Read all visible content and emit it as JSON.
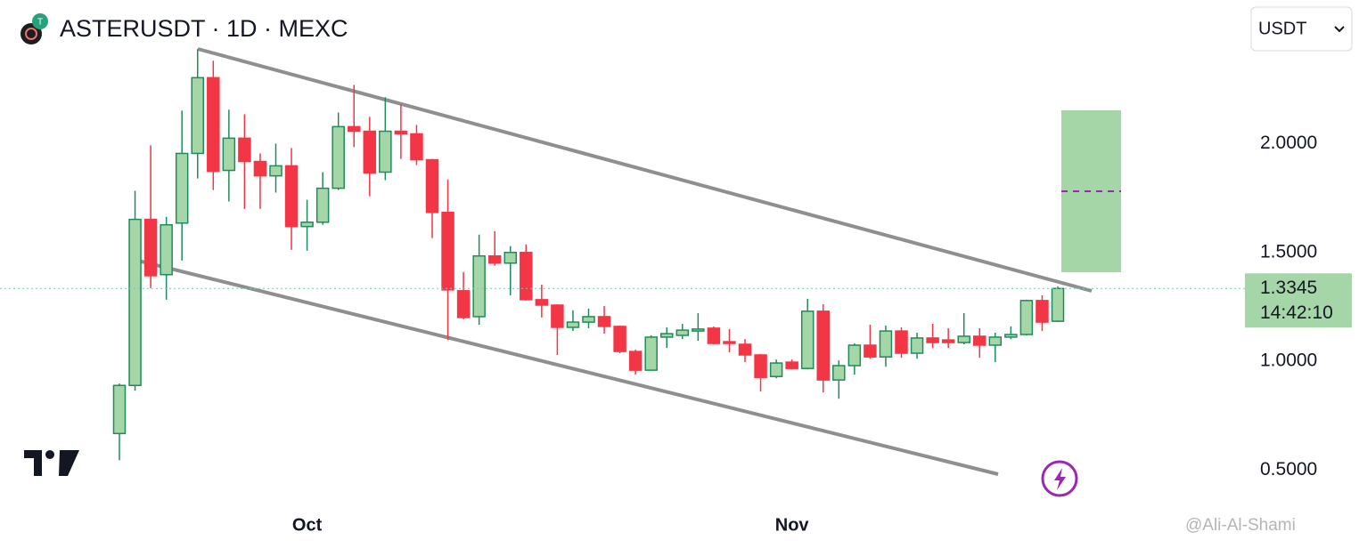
{
  "chart_data": {
    "type": "candlestick",
    "title": "ASTERUSDT · 1D · MEXC",
    "currency": "USDT",
    "categories": [
      null,
      null,
      null,
      null,
      null,
      null,
      null,
      null,
      null,
      null,
      null,
      null,
      "Oct",
      null,
      null,
      null,
      null,
      null,
      null,
      null,
      null,
      null,
      null,
      null,
      null,
      null,
      null,
      null,
      null,
      null,
      null,
      null,
      null,
      null,
      null,
      null,
      null,
      null,
      null,
      null,
      null,
      null,
      null,
      "Nov",
      null,
      null,
      null,
      null,
      null,
      null,
      null,
      null,
      null,
      null,
      null,
      null,
      null,
      null,
      null,
      null,
      null
    ],
    "open": [
      0.668,
      0.889,
      1.652,
      1.398,
      1.635,
      1.955,
      2.303,
      1.877,
      2.025,
      1.918,
      1.852,
      1.898,
      1.619,
      1.639,
      1.795,
      2.078,
      2.057,
      1.869,
      2.057,
      2.045,
      1.926,
      1.684,
      1.324,
      1.205,
      1.484,
      1.451,
      1.5,
      1.283,
      1.258,
      1.156,
      1.18,
      1.205,
      1.16,
      1.045,
      0.959,
      1.111,
      1.119,
      1.139,
      1.152,
      1.09,
      1.078,
      1.029,
      0.93,
      0.996,
      0.967,
      1.23,
      0.914,
      0.98,
      1.074,
      1.02,
      1.139,
      1.037,
      1.107,
      1.098,
      1.086,
      1.115,
      1.074,
      1.111,
      1.123,
      1.279,
      1.184
    ],
    "high": [
      0.898,
      1.783,
      1.992,
      1.664,
      2.152,
      2.434,
      2.381,
      2.156,
      2.135,
      1.955,
      2.0,
      1.98,
      1.742,
      1.869,
      2.143,
      2.27,
      2.123,
      2.213,
      2.18,
      2.086,
      1.93,
      1.836,
      1.41,
      1.582,
      1.598,
      1.529,
      1.537,
      1.352,
      1.262,
      1.234,
      1.242,
      1.254,
      1.164,
      1.053,
      1.119,
      1.156,
      1.172,
      1.221,
      1.16,
      1.148,
      1.102,
      1.033,
      1.008,
      1.008,
      1.287,
      1.262,
      1.004,
      1.082,
      1.168,
      1.164,
      1.156,
      1.131,
      1.172,
      1.152,
      1.221,
      1.152,
      1.131,
      1.16,
      1.283,
      1.303,
      1.344
    ],
    "low": [
      0.545,
      0.865,
      1.336,
      1.283,
      1.463,
      1.84,
      1.787,
      1.734,
      1.7,
      1.7,
      1.775,
      1.512,
      1.508,
      1.627,
      1.787,
      1.984,
      1.758,
      1.832,
      1.93,
      1.902,
      1.566,
      1.098,
      1.193,
      1.168,
      1.439,
      1.303,
      1.279,
      1.201,
      1.029,
      1.139,
      1.152,
      1.127,
      1.037,
      0.939,
      0.959,
      1.061,
      1.102,
      1.094,
      1.078,
      1.041,
      0.996,
      0.861,
      0.922,
      0.963,
      0.963,
      0.857,
      0.828,
      0.939,
      1.012,
      0.975,
      1.016,
      1.012,
      1.061,
      1.061,
      1.078,
      1.016,
      0.996,
      1.102,
      1.119,
      1.139,
      1.18
    ],
    "close": [
      0.889,
      1.652,
      1.393,
      1.627,
      1.955,
      2.303,
      1.873,
      2.025,
      1.918,
      1.852,
      1.898,
      1.619,
      1.639,
      1.795,
      2.078,
      2.057,
      1.865,
      2.057,
      2.045,
      1.926,
      1.684,
      1.328,
      1.201,
      1.484,
      1.451,
      1.5,
      1.283,
      1.258,
      1.156,
      1.18,
      1.205,
      1.16,
      1.045,
      0.959,
      1.111,
      1.127,
      1.143,
      1.148,
      1.082,
      1.082,
      1.029,
      0.926,
      0.992,
      0.967,
      1.23,
      0.914,
      0.98,
      1.074,
      1.02,
      1.139,
      1.037,
      1.107,
      1.086,
      1.086,
      1.115,
      1.074,
      1.111,
      1.123,
      1.279,
      1.18,
      1.3345
    ],
    "up_color": "#a5d6a7",
    "up_border": "#1e8c5a",
    "down_color": "#f23645",
    "ylim": [
      0.33,
      2.66
    ],
    "yticks": [
      {
        "value": 0.5,
        "label": "0.5000"
      },
      {
        "value": 1,
        "label": "1.0000"
      },
      {
        "value": 1.5,
        "label": "1.5000"
      },
      {
        "value": 2,
        "label": "2.0000"
      }
    ],
    "grid": false,
    "last_price": 1.3345,
    "countdown": "14:42:10",
    "watermark": "@Ali-Al-Shami"
  }
}
